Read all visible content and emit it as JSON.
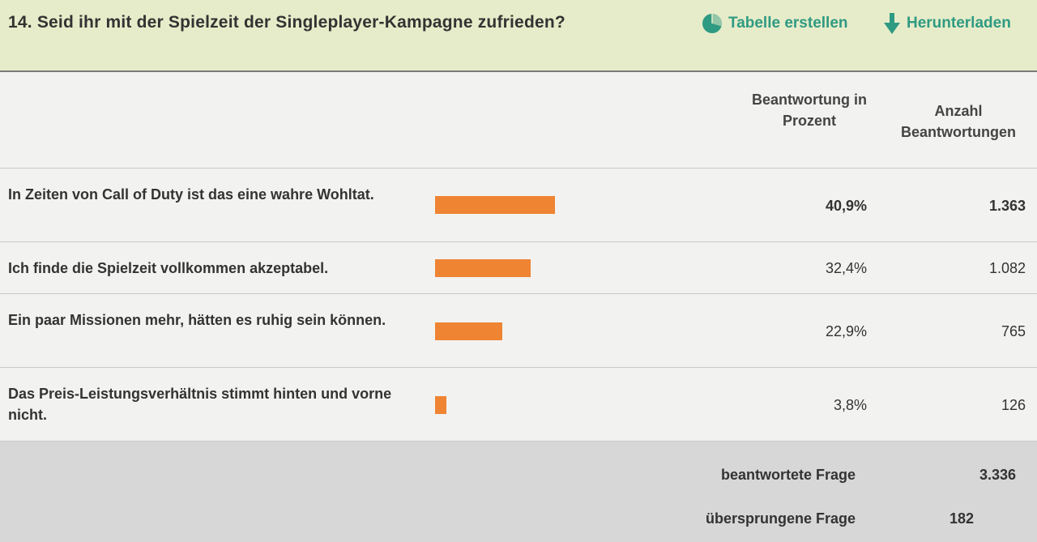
{
  "question": {
    "title": "14. Seid ihr mit der Spielzeit der Singleplayer-Kampagne zufrieden?"
  },
  "actions": {
    "create_table": "Tabelle erstellen",
    "download": "Herunterladen"
  },
  "columns": {
    "percent_header": "Beantwortung in Prozent",
    "count_header": "Anzahl Beantwortungen"
  },
  "answers": [
    {
      "label": "In Zeiten von Call of Duty ist das eine wahre Wohltat.",
      "percent": "40,9%",
      "share": 0.409,
      "count": "1.363"
    },
    {
      "label": "Ich finde die Spielzeit vollkommen akzeptabel.",
      "percent": "32,4%",
      "share": 0.324,
      "count": "1.082"
    },
    {
      "label": "Ein paar Missionen mehr, hätten es ruhig sein können.",
      "percent": "22,9%",
      "share": 0.229,
      "count": "765"
    },
    {
      "label": "Das Preis-Leistungsverhältnis stimmt hinten und vorne nicht.",
      "percent": "3,8%",
      "share": 0.038,
      "count": "126"
    }
  ],
  "summary": {
    "answered_label": "beantwortete Frage",
    "answered_value": "3.336",
    "skipped_label": "übersprungene Frage",
    "skipped_value": "182"
  },
  "colors": {
    "bar": "#ef8433",
    "accent": "#2f9a82",
    "header_bg": "#e6ecc9"
  },
  "icons": {
    "create_table": "pie-chart-icon",
    "download": "download-arrow-icon"
  }
}
